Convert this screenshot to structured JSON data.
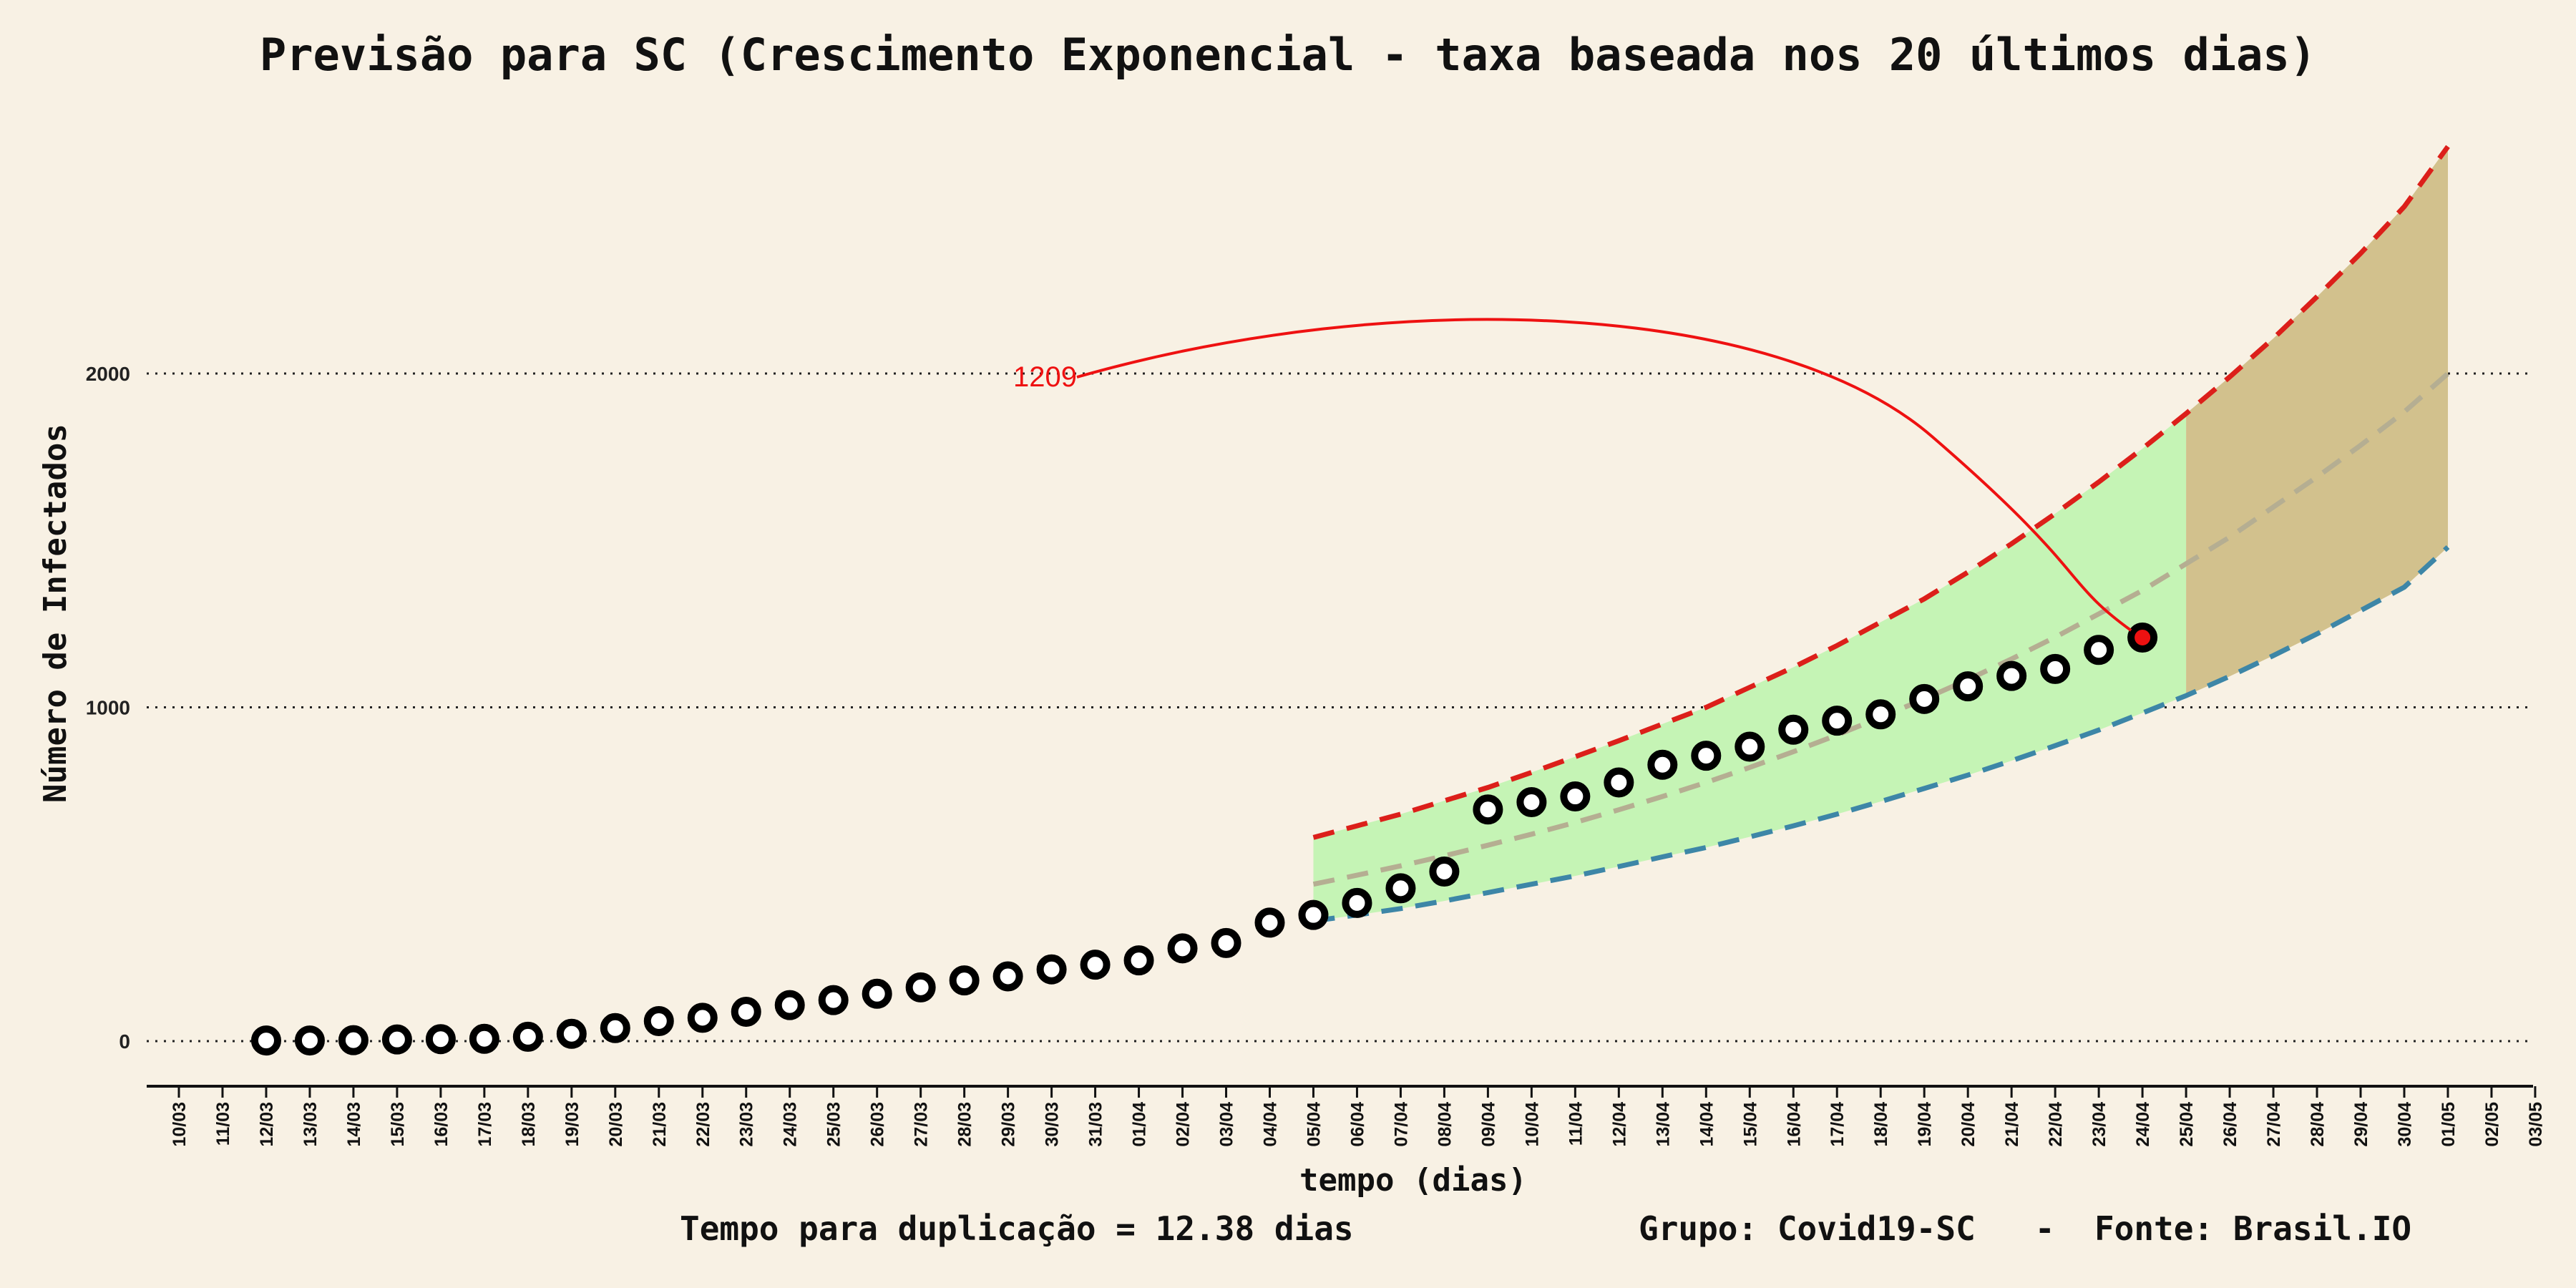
{
  "chart_data": {
    "type": "scatter",
    "title": "Previsão para SC (Crescimento Exponencial - taxa baseada nos 20 últimos dias)",
    "xlabel": "tempo (dias)",
    "ylabel": "Número de Infectados",
    "x_ticks": [
      "10/03",
      "11/03",
      "12/03",
      "13/03",
      "14/03",
      "15/03",
      "16/03",
      "17/03",
      "18/03",
      "19/03",
      "20/03",
      "21/03",
      "22/03",
      "23/03",
      "24/03",
      "25/03",
      "26/03",
      "27/03",
      "28/03",
      "29/03",
      "30/03",
      "31/03",
      "01/04",
      "02/04",
      "03/04",
      "04/04",
      "05/04",
      "06/04",
      "07/04",
      "08/04",
      "09/04",
      "10/04",
      "11/04",
      "12/04",
      "13/04",
      "14/04",
      "15/04",
      "16/04",
      "17/04",
      "18/04",
      "19/04",
      "20/04",
      "21/04",
      "22/04",
      "23/04",
      "24/04",
      "25/04",
      "26/04",
      "27/04",
      "28/04",
      "29/04",
      "30/04",
      "01/05",
      "02/05",
      "03/05"
    ],
    "y_ticks": [
      0,
      1000,
      2000
    ],
    "ylim": [
      -130,
      2700
    ],
    "grid": "horizontal dotted",
    "observed": {
      "dates": [
        "12/03",
        "13/03",
        "14/03",
        "15/03",
        "16/03",
        "17/03",
        "18/03",
        "19/03",
        "20/03",
        "21/03",
        "22/03",
        "23/03",
        "24/03",
        "25/03",
        "26/03",
        "27/03",
        "28/03",
        "29/03",
        "30/03",
        "31/03",
        "01/04",
        "02/04",
        "03/04",
        "04/04",
        "05/04",
        "06/04",
        "07/04",
        "08/04",
        "09/04",
        "10/04",
        "11/04",
        "12/04",
        "13/04",
        "14/04",
        "15/04",
        "16/04",
        "17/04",
        "18/04",
        "19/04",
        "20/04",
        "21/04",
        "22/04",
        "23/04",
        "24/04"
      ],
      "values": [
        2,
        2,
        3,
        5,
        6,
        7,
        13,
        22,
        39,
        60,
        70,
        88,
        108,
        123,
        142,
        161,
        182,
        194,
        215,
        229,
        242,
        278,
        294,
        355,
        378,
        414,
        458,
        508,
        694,
        716,
        733,
        775,
        828,
        855,
        882,
        933,
        960,
        979,
        1025,
        1063,
        1094,
        1115,
        1172,
        1209
      ]
    },
    "forecast_dates": [
      "05/04",
      "06/04",
      "07/04",
      "08/04",
      "09/04",
      "10/04",
      "11/04",
      "12/04",
      "13/04",
      "14/04",
      "15/04",
      "16/04",
      "17/04",
      "18/04",
      "19/04",
      "20/04",
      "21/04",
      "22/04",
      "23/04",
      "24/04",
      "25/04",
      "26/04",
      "27/04",
      "28/04",
      "29/04",
      "30/04",
      "01/05"
    ],
    "forecast_mid": [
      470,
      497,
      525,
      555,
      587,
      620,
      655,
      693,
      733,
      775,
      820,
      867,
      917,
      970,
      1025,
      1083,
      1145,
      1210,
      1280,
      1350,
      1430,
      1510,
      1600,
      1690,
      1785,
      1885,
      2000
    ],
    "forecast_upper": [
      610,
      645,
      680,
      720,
      760,
      805,
      852,
      900,
      950,
      1000,
      1060,
      1120,
      1185,
      1255,
      1325,
      1405,
      1490,
      1580,
      1675,
      1775,
      1880,
      1990,
      2105,
      2230,
      2360,
      2500,
      2680
    ],
    "forecast_lower": [
      360,
      378,
      397,
      420,
      445,
      470,
      495,
      523,
      552,
      580,
      612,
      645,
      680,
      718,
      757,
      797,
      840,
      885,
      932,
      983,
      1035,
      1093,
      1155,
      1220,
      1290,
      1360,
      1480
    ],
    "highlight": {
      "date": "24/04",
      "value": 1209,
      "label": "1209"
    },
    "colors": {
      "background": "#f8f1e4",
      "band_observed": "#c5f4b5",
      "band_future": "#d2c18d",
      "upper_line": "#dc1f1a",
      "lower_line": "#3d86a7",
      "mid_line": "#b5ae92",
      "highlight": "#ee1111"
    }
  },
  "footer": {
    "left": "Tempo para duplicação = 12.38 dias",
    "right": "Grupo: Covid19-SC   -  Fonte: Brasil.IO"
  }
}
